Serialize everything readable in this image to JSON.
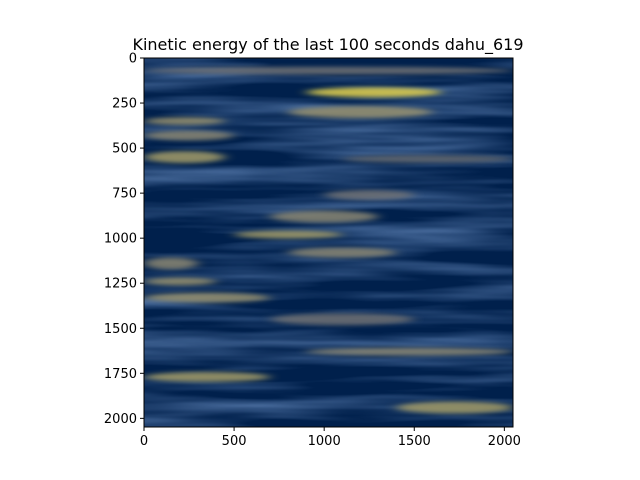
{
  "chart_data": {
    "type": "heatmap",
    "title": "Kinetic energy of the last 100 seconds dahu_619",
    "xlabel": "",
    "ylabel": "",
    "xlim": [
      0,
      2048
    ],
    "ylim": [
      2048,
      0
    ],
    "x_ticks": [
      0,
      500,
      1000,
      1500,
      2000
    ],
    "y_ticks": [
      0,
      250,
      500,
      750,
      1000,
      1250,
      1500,
      1750,
      2000
    ],
    "x_tick_labels": [
      "0",
      "500",
      "1000",
      "1500",
      "2000"
    ],
    "y_tick_labels": [
      "0",
      "250",
      "500",
      "750",
      "1000",
      "1250",
      "1500",
      "1750",
      "2000"
    ],
    "colormap": "cividis",
    "colors": {
      "low": "#00204c",
      "mid": "#7c7b78",
      "high": "#ffe945"
    },
    "grid": false,
    "legend": "none",
    "bands": [
      {
        "y": 70,
        "x_start": 0,
        "x_end": 2048,
        "intensity": 0.45
      },
      {
        "y": 190,
        "x_start": 900,
        "x_end": 1650,
        "intensity": 0.9
      },
      {
        "y": 300,
        "x_start": 800,
        "x_end": 1600,
        "intensity": 0.6
      },
      {
        "y": 350,
        "x_start": 0,
        "x_end": 450,
        "intensity": 0.6
      },
      {
        "y": 430,
        "x_start": 0,
        "x_end": 500,
        "intensity": 0.55
      },
      {
        "y": 550,
        "x_start": 0,
        "x_end": 450,
        "intensity": 0.65
      },
      {
        "y": 560,
        "x_start": 1100,
        "x_end": 2048,
        "intensity": 0.4
      },
      {
        "y": 760,
        "x_start": 1000,
        "x_end": 1500,
        "intensity": 0.45
      },
      {
        "y": 880,
        "x_start": 700,
        "x_end": 1300,
        "intensity": 0.55
      },
      {
        "y": 980,
        "x_start": 500,
        "x_end": 1100,
        "intensity": 0.65
      },
      {
        "y": 1080,
        "x_start": 800,
        "x_end": 1400,
        "intensity": 0.55
      },
      {
        "y": 1140,
        "x_start": 0,
        "x_end": 300,
        "intensity": 0.55
      },
      {
        "y": 1240,
        "x_start": 0,
        "x_end": 400,
        "intensity": 0.6
      },
      {
        "y": 1330,
        "x_start": 0,
        "x_end": 700,
        "intensity": 0.6
      },
      {
        "y": 1450,
        "x_start": 700,
        "x_end": 1500,
        "intensity": 0.45
      },
      {
        "y": 1630,
        "x_start": 900,
        "x_end": 2048,
        "intensity": 0.55
      },
      {
        "y": 1770,
        "x_start": 0,
        "x_end": 700,
        "intensity": 0.65
      },
      {
        "y": 1940,
        "x_start": 1400,
        "x_end": 2048,
        "intensity": 0.65
      }
    ]
  }
}
